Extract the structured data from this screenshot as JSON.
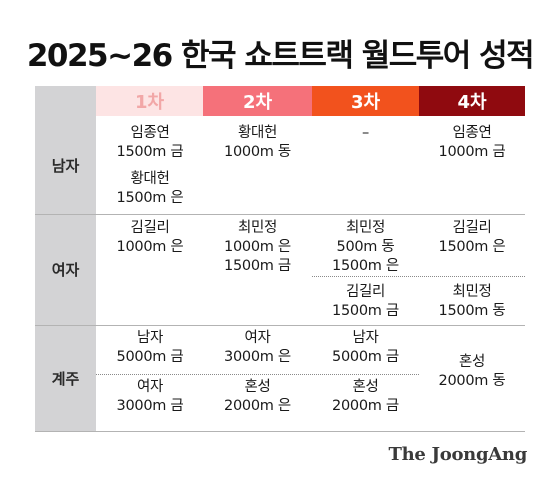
{
  "title": "2025~26 한국 쇼트트랙 월드투어 성적",
  "columns": [
    {
      "label": "1차",
      "bg": "#fde4e4",
      "fg": "#f2a7a7"
    },
    {
      "label": "2차",
      "bg": "#f5717a",
      "fg": "#ffffff"
    },
    {
      "label": "3차",
      "bg": "#f2521d",
      "fg": "#ffffff"
    },
    {
      "label": "4차",
      "bg": "#8f0a0f",
      "fg": "#ffffff"
    }
  ],
  "rows": {
    "men": {
      "label": "남자",
      "c1": [
        {
          "name": "임종연",
          "result": "1500m 금"
        },
        {
          "name": "황대헌",
          "result": "1500m 은"
        }
      ],
      "c2": [
        {
          "name": "황대헌",
          "result": "1000m 동"
        }
      ],
      "c3": [
        {
          "name": "–",
          "result": ""
        }
      ],
      "c4": [
        {
          "name": "임종연",
          "result": "1000m 금"
        }
      ]
    },
    "women": {
      "label": "여자",
      "c1": [
        {
          "name": "김길리",
          "result": "1000m 은"
        }
      ],
      "c2": [
        {
          "name": "최민정",
          "result": "1000m 은",
          "result2": "1500m 금"
        }
      ],
      "c3": [
        {
          "name": "최민정",
          "result": "500m 동",
          "result2": "1500m 은"
        },
        {
          "name": "김길리",
          "result": "1500m 금"
        }
      ],
      "c4": [
        {
          "name": "김길리",
          "result": "1500m 은"
        },
        {
          "name": "최민정",
          "result": "1500m 동"
        }
      ]
    },
    "relay": {
      "label": "계주",
      "c1": [
        {
          "name": "남자",
          "result": "5000m 금"
        },
        {
          "name": "여자",
          "result": "3000m 금"
        }
      ],
      "c2": [
        {
          "name": "여자",
          "result": "3000m 은"
        },
        {
          "name": "혼성",
          "result": "2000m 은"
        }
      ],
      "c3": [
        {
          "name": "남자",
          "result": "5000m 금"
        },
        {
          "name": "혼성",
          "result": "2000m 금"
        }
      ],
      "c4": [
        {
          "name": "혼성",
          "result": "2000m 동"
        }
      ]
    }
  },
  "logo": "The JoongAng"
}
